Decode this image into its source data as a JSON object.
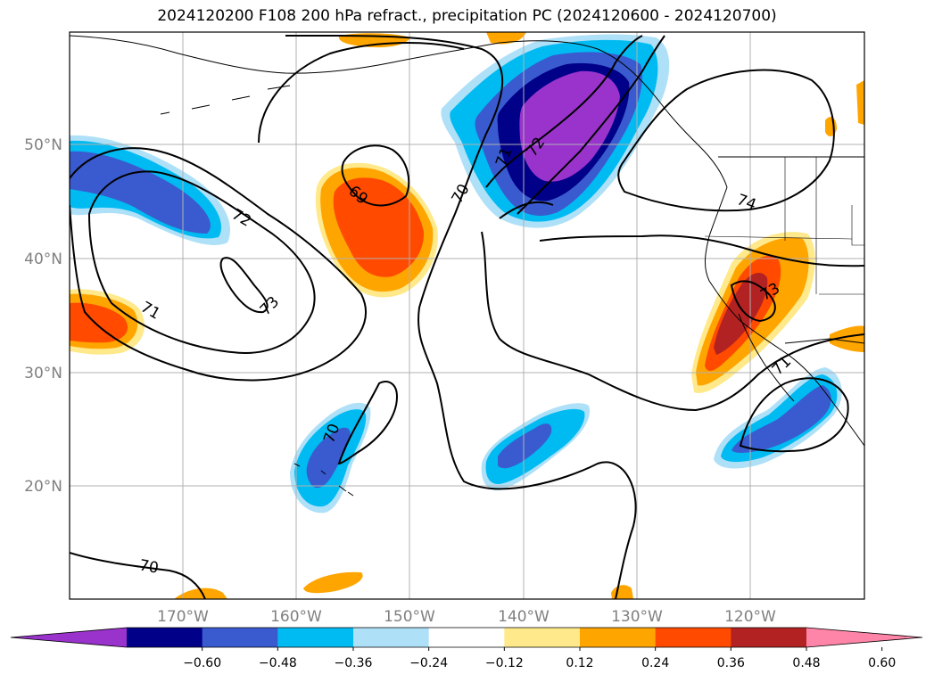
{
  "title": "2024120200 F108 200 hPa refract., precipitation PC (2024120600 - 2024120700)",
  "colors": {
    "land_outline": "#000000",
    "grid": "#b0b0b0",
    "contour": "#000000",
    "neg_060": "#9933cc",
    "neg_048": "#000088",
    "neg_036": "#3a5bcf",
    "neg_024": "#00bbf2",
    "neg_012": "#aee0f8",
    "pos_012": "#ffe98a",
    "pos_024": "#ffa500",
    "pos_036": "#ff4a00",
    "pos_048": "#b22222",
    "pos_060": "#ff85a8"
  },
  "map": {
    "lon_labels": [
      "170°W",
      "160°W",
      "150°W",
      "140°W",
      "130°W",
      "120°W"
    ],
    "lat_labels": [
      "50°N",
      "40°N",
      "30°N",
      "20°N"
    ],
    "contour_labels": [
      "69",
      "70",
      "70",
      "70",
      "71",
      "71",
      "71",
      "72",
      "72",
      "73",
      "73",
      "74"
    ]
  },
  "colorbar": {
    "ticks": [
      "−0.60",
      "−0.48",
      "−0.36",
      "−0.24",
      "−0.12",
      "0.12",
      "0.24",
      "0.36",
      "0.48",
      "0.60"
    ],
    "segments": [
      "#9933cc",
      "#000088",
      "#3a5bcf",
      "#00bbf2",
      "#aee0f8",
      "#ffffff",
      "#ffe98a",
      "#ffa500",
      "#ff4a00",
      "#b22222",
      "#ff85a8"
    ]
  }
}
